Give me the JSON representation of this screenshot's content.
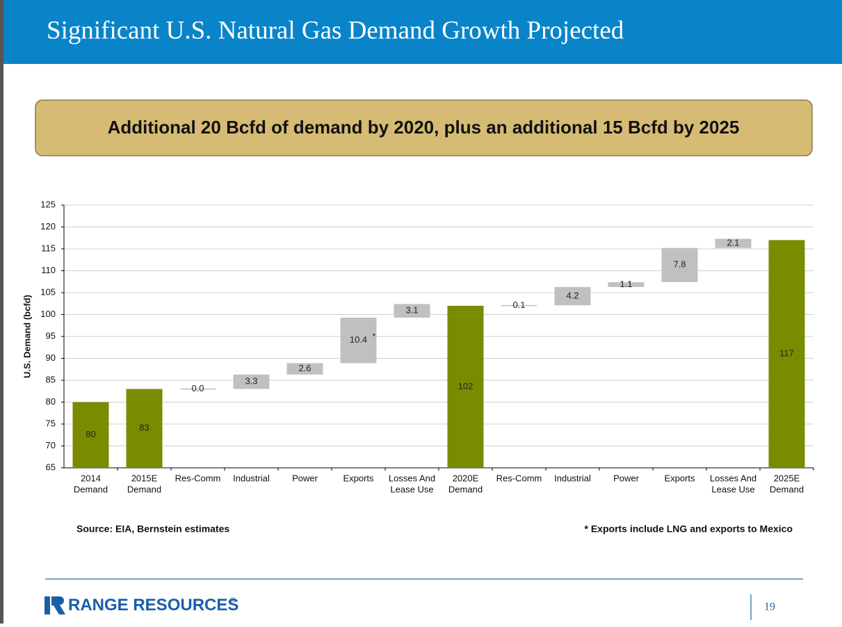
{
  "header": {
    "title": "Significant U.S. Natural Gas Demand Growth Projected"
  },
  "banner": {
    "text": "Additional 20 Bcfd of demand by 2020, plus an additional 15 Bcfd by 2025"
  },
  "chart_data": {
    "type": "waterfall",
    "y_label": "U.S. Demand (bcfd)",
    "categories": [
      [
        "2014",
        "Demand"
      ],
      [
        "2015E",
        "Demand"
      ],
      [
        "Res-Comm"
      ],
      [
        "Industrial"
      ],
      [
        "Power"
      ],
      [
        "Exports"
      ],
      [
        "Losses And",
        "Lease Use"
      ],
      [
        "2020E",
        "Demand"
      ],
      [
        "Res-Comm"
      ],
      [
        "Industrial"
      ],
      [
        "Power"
      ],
      [
        "Exports"
      ],
      [
        "Losses And",
        "Lease Use"
      ],
      [
        "2025E",
        "Demand"
      ]
    ],
    "values": [
      80,
      83,
      0.0,
      3.3,
      2.6,
      10.4,
      3.1,
      102,
      0.1,
      4.2,
      1.1,
      7.8,
      2.1,
      117
    ],
    "value_labels": [
      "80",
      "83",
      "0.0",
      "3.3",
      "2.6",
      "10.4",
      "3.1",
      "102",
      "0.1",
      "4.2",
      "1.1",
      "7.8",
      "2.1",
      "117"
    ],
    "is_total": [
      true,
      true,
      false,
      false,
      false,
      false,
      false,
      true,
      false,
      false,
      false,
      false,
      false,
      true
    ],
    "total_color": "#7b8b00",
    "change_color": "#c0c0c0",
    "annotation": {
      "index": 5,
      "text": "*"
    },
    "ylim": [
      65,
      125
    ],
    "yticks": [
      65,
      70,
      75,
      80,
      85,
      90,
      95,
      100,
      105,
      110,
      115,
      120,
      125
    ],
    "grid": true
  },
  "notes": {
    "source": "Source: EIA, Bernstein estimates",
    "footnote": "* Exports include LNG and exports to Mexico"
  },
  "footer": {
    "logo": "RANGE RESOURCES",
    "mark": "®",
    "page": "19"
  }
}
